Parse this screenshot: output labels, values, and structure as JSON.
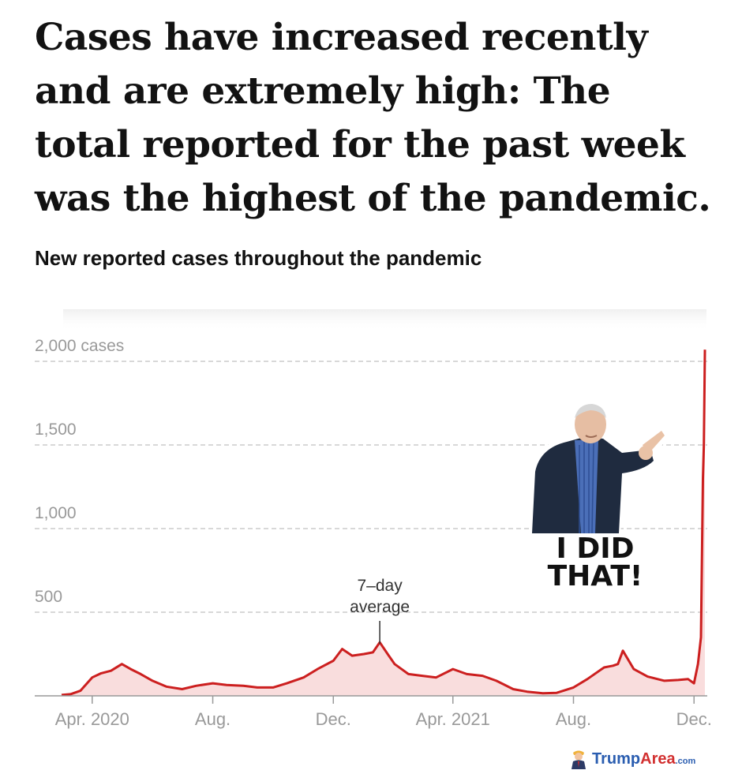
{
  "headline": "Cases have increased recently and are extremely high: The total reported for the past week was the highest of the pandemic.",
  "subtitle": "New reported cases throughout the pandemic",
  "chart_data": {
    "type": "area",
    "y_tick_labels": [
      "2,000 cases",
      "1,500",
      "1,000",
      "500"
    ],
    "y_ticks": [
      2000,
      1500,
      1000,
      500
    ],
    "ylim": [
      0,
      2150
    ],
    "x_tick_labels": [
      "Apr. 2020",
      "Aug.",
      "Dec.",
      "Apr. 2021",
      "Aug.",
      "Dec."
    ],
    "x_ticks": [
      "2020-04-01",
      "2020-08-01",
      "2020-12-01",
      "2021-04-01",
      "2021-08-01",
      "2021-12-01"
    ],
    "x_range": [
      "2020-03-01",
      "2021-12-12"
    ],
    "grid": true,
    "annotation": {
      "text_lines": [
        "7–day",
        "average"
      ],
      "x": "2021-01-17",
      "y": 320
    },
    "series": [
      {
        "color": "#cc1f1f",
        "fill": "#f9dddd",
        "x": [
          "2020-03-01",
          "2020-03-10",
          "2020-03-20",
          "2020-04-01",
          "2020-04-10",
          "2020-04-20",
          "2020-05-01",
          "2020-05-10",
          "2020-05-20",
          "2020-06-01",
          "2020-06-15",
          "2020-07-01",
          "2020-07-15",
          "2020-08-01",
          "2020-08-15",
          "2020-09-01",
          "2020-09-15",
          "2020-10-01",
          "2020-10-15",
          "2020-11-01",
          "2020-11-15",
          "2020-12-01",
          "2020-12-10",
          "2020-12-20",
          "2021-01-01",
          "2021-01-10",
          "2021-01-17",
          "2021-01-25",
          "2021-02-01",
          "2021-02-15",
          "2021-03-01",
          "2021-03-15",
          "2021-04-01",
          "2021-04-15",
          "2021-05-01",
          "2021-05-15",
          "2021-06-01",
          "2021-06-15",
          "2021-07-01",
          "2021-07-15",
          "2021-08-01",
          "2021-08-15",
          "2021-09-01",
          "2021-09-10",
          "2021-09-15",
          "2021-09-20",
          "2021-10-01",
          "2021-10-15",
          "2021-11-01",
          "2021-11-15",
          "2021-11-25",
          "2021-12-01",
          "2021-12-05",
          "2021-12-08",
          "2021-12-10",
          "2021-12-11",
          "2021-12-12"
        ],
        "y": [
          5,
          10,
          30,
          110,
          135,
          150,
          190,
          160,
          130,
          90,
          55,
          40,
          60,
          75,
          65,
          60,
          50,
          50,
          75,
          110,
          160,
          210,
          280,
          240,
          250,
          260,
          320,
          250,
          190,
          130,
          120,
          110,
          160,
          130,
          120,
          90,
          40,
          25,
          15,
          18,
          50,
          100,
          170,
          180,
          190,
          270,
          160,
          115,
          90,
          95,
          100,
          75,
          190,
          350,
          1300,
          1500,
          2070
        ]
      }
    ]
  },
  "sticker": {
    "line1": "I DID",
    "line2": "THAT!"
  },
  "watermark": {
    "name": "Trump",
    "accent": "Area",
    "domain": ".com"
  }
}
